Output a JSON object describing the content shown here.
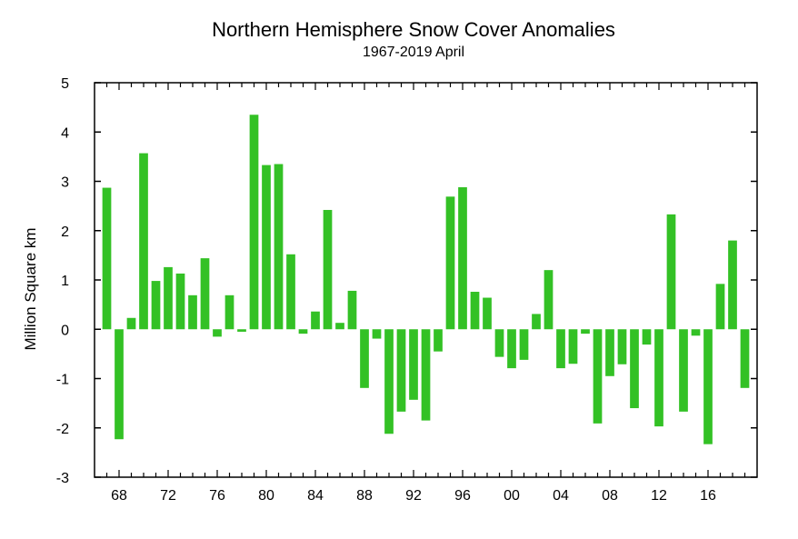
{
  "chart_data": {
    "type": "bar",
    "title": "Northern Hemisphere Snow Cover Anomalies",
    "subtitle": "1967-2019 April",
    "ylabel": "Million Square km",
    "xlabel": "",
    "ylim": [
      -3,
      5
    ],
    "yticks": [
      -3,
      -2,
      -1,
      0,
      1,
      2,
      3,
      4,
      5
    ],
    "xlim": [
      1966,
      2020
    ],
    "xtick_years": [
      1968,
      1972,
      1976,
      1980,
      1984,
      1988,
      1992,
      1996,
      2000,
      2004,
      2008,
      2012,
      2016
    ],
    "xtick_labels": [
      "68",
      "72",
      "76",
      "80",
      "84",
      "88",
      "92",
      "96",
      "00",
      "04",
      "08",
      "12",
      "16"
    ],
    "bar_color": "#33c125",
    "grid": false,
    "years": [
      1967,
      1968,
      1969,
      1970,
      1971,
      1972,
      1973,
      1974,
      1975,
      1976,
      1977,
      1978,
      1979,
      1980,
      1981,
      1982,
      1983,
      1984,
      1985,
      1986,
      1987,
      1988,
      1989,
      1990,
      1991,
      1992,
      1993,
      1994,
      1995,
      1996,
      1997,
      1998,
      1999,
      2000,
      2001,
      2002,
      2003,
      2004,
      2005,
      2006,
      2007,
      2008,
      2009,
      2010,
      2011,
      2012,
      2013,
      2014,
      2015,
      2016,
      2017,
      2018,
      2019
    ],
    "values": [
      2.87,
      -2.23,
      0.23,
      3.57,
      0.98,
      1.26,
      1.13,
      0.69,
      1.44,
      -0.15,
      0.69,
      -0.05,
      4.35,
      3.33,
      3.35,
      1.52,
      -0.09,
      0.36,
      2.42,
      0.13,
      0.78,
      -1.19,
      -0.19,
      -2.12,
      -1.67,
      -1.43,
      -1.85,
      -0.45,
      2.69,
      2.88,
      0.76,
      0.64,
      -0.56,
      -0.79,
      -0.62,
      0.31,
      1.2,
      -0.79,
      -0.7,
      -0.09,
      -1.91,
      -0.95,
      -0.71,
      -1.6,
      -0.31,
      -1.97,
      2.33,
      -1.67,
      -0.13,
      -2.33,
      0.92,
      1.8,
      -1.19
    ]
  }
}
